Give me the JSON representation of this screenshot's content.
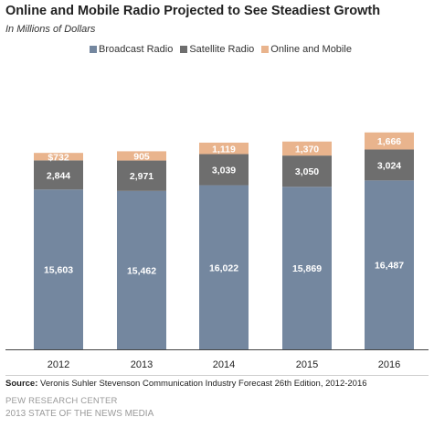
{
  "title": "Online and Mobile Radio Projected to See Steadiest Growth",
  "subtitle": "In Millions of Dollars",
  "source_label": "Source:",
  "source_text": "Veronis Suhler Stevenson Communication Industry Forecast 26th Edition, 2012-2016",
  "org": "PEW RESEARCH CENTER",
  "report": "2013 STATE OF THE NEWS MEDIA",
  "colors": {
    "broadcast": "#74879f",
    "satellite": "#6e6e6e",
    "online": "#e9b48d"
  },
  "chart_data": {
    "type": "bar",
    "stacked": true,
    "categories": [
      "2012",
      "2013",
      "2014",
      "2015",
      "2016"
    ],
    "series": [
      {
        "name": "Broadcast Radio",
        "values": [
          15603,
          15462,
          16022,
          15869,
          16487
        ],
        "labels": [
          "15,603",
          "15,462",
          "16,022",
          "15,869",
          "16,487"
        ]
      },
      {
        "name": "Satellite Radio",
        "values": [
          2844,
          2971,
          3039,
          3050,
          3024
        ],
        "labels": [
          "2,844",
          "2,971",
          "3,039",
          "3,050",
          "3,024"
        ]
      },
      {
        "name": "Online and Mobile",
        "values": [
          732,
          905,
          1119,
          1370,
          1666
        ],
        "labels": [
          "$732",
          "905",
          "1,119",
          "1,370",
          "1,666"
        ]
      }
    ],
    "legend_position": "top"
  }
}
